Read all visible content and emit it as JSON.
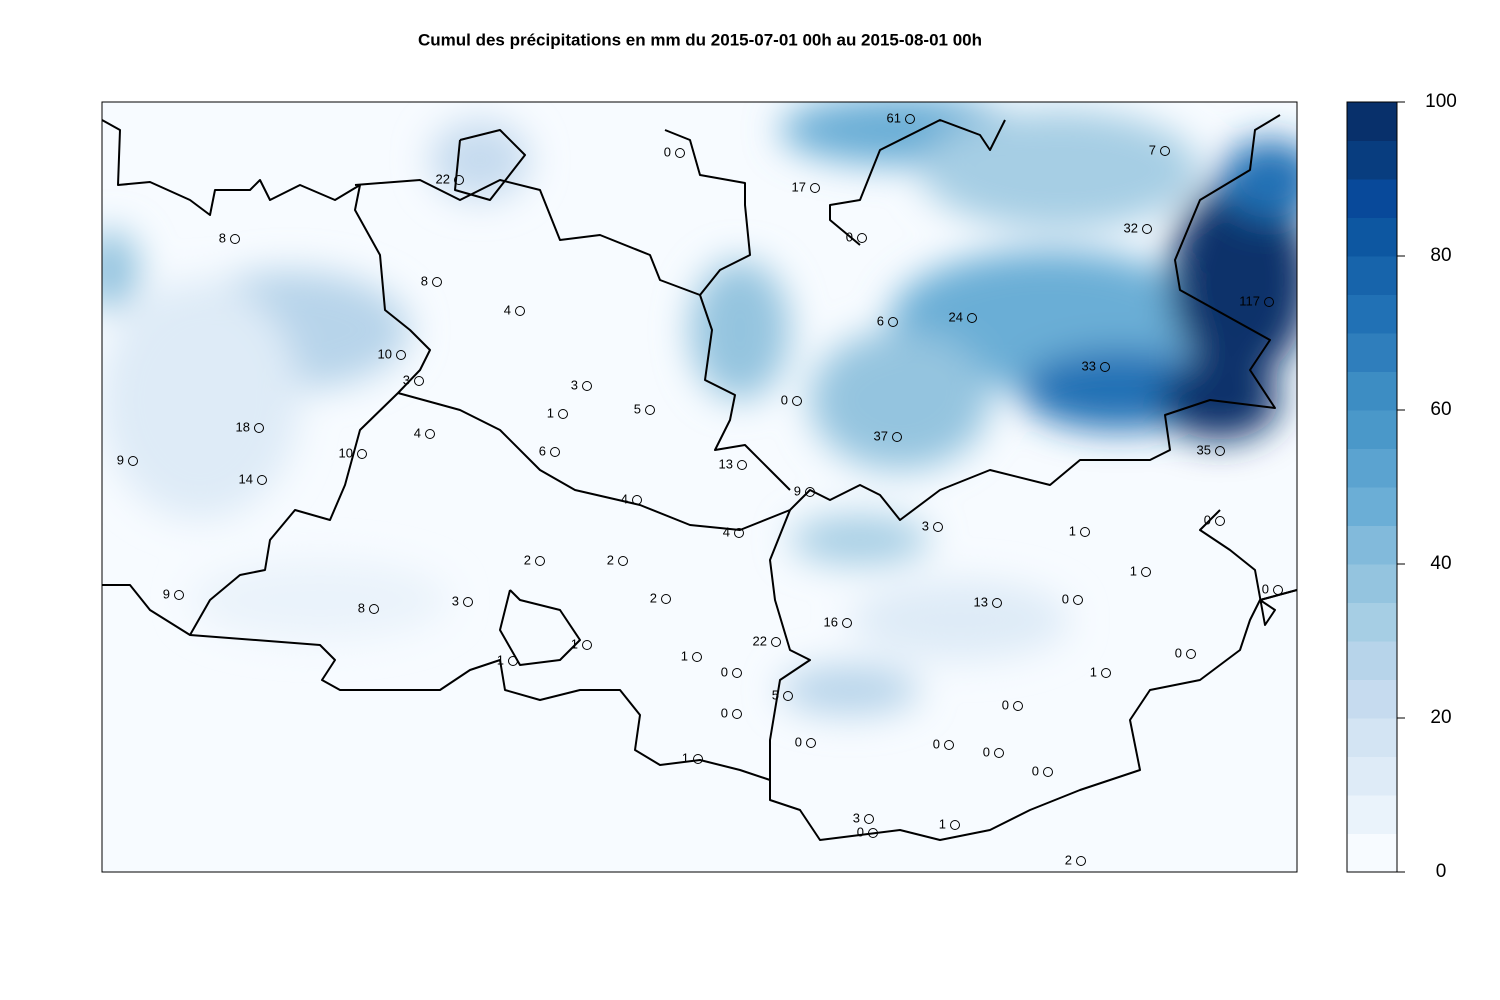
{
  "title": "Cumul des précipitations en mm du 2015-07-01 00h au 2015-08-01 00h",
  "colorbar": {
    "lim": [
      0,
      100
    ],
    "ticks": [
      0,
      20,
      40,
      60,
      80,
      100
    ],
    "colors": [
      "#f7fbff",
      "#eaf3fb",
      "#deebf7",
      "#d3e4f3",
      "#c6dbef",
      "#b7d4ea",
      "#a6cee4",
      "#94c4df",
      "#82badb",
      "#6baed6",
      "#5ba3d0",
      "#4a98c9",
      "#3d8dc3",
      "#2f7ebc",
      "#2171b5",
      "#1764ab",
      "#0d57a1",
      "#08499a",
      "#083d7f",
      "#08306b"
    ]
  },
  "stations": [
    {
      "value": 61
    },
    {
      "value": 0
    },
    {
      "value": 7
    },
    {
      "value": 22
    },
    {
      "value": 17
    },
    {
      "value": 0
    },
    {
      "value": 32
    },
    {
      "value": 8
    },
    {
      "value": 8
    },
    {
      "value": 4
    },
    {
      "value": 117
    },
    {
      "value": 6
    },
    {
      "value": 24
    },
    {
      "value": 10
    },
    {
      "value": 3
    },
    {
      "value": 33
    },
    {
      "value": 3
    },
    {
      "value": 1
    },
    {
      "value": 5
    },
    {
      "value": 0
    },
    {
      "value": 18
    },
    {
      "value": 4
    },
    {
      "value": 37
    },
    {
      "value": 9
    },
    {
      "value": 10
    },
    {
      "value": 6
    },
    {
      "value": 13
    },
    {
      "value": 35
    },
    {
      "value": 14
    },
    {
      "value": 9
    },
    {
      "value": 4
    },
    {
      "value": 3
    },
    {
      "value": 1
    },
    {
      "value": 4
    },
    {
      "value": 0
    },
    {
      "value": 2
    },
    {
      "value": 2
    },
    {
      "value": 1
    },
    {
      "value": 9
    },
    {
      "value": 8
    },
    {
      "value": 3
    },
    {
      "value": 2
    },
    {
      "value": 13
    },
    {
      "value": 0
    },
    {
      "value": 0
    },
    {
      "value": 16
    },
    {
      "value": 22
    },
    {
      "value": 1
    },
    {
      "value": 1
    },
    {
      "value": 1
    },
    {
      "value": 0
    },
    {
      "value": 0
    },
    {
      "value": 1
    },
    {
      "value": 5
    },
    {
      "value": 0
    },
    {
      "value": 0
    },
    {
      "value": 0
    },
    {
      "value": 0
    },
    {
      "value": 0
    },
    {
      "value": 1
    },
    {
      "value": 0
    },
    {
      "value": 3
    },
    {
      "value": 0
    },
    {
      "value": 1
    },
    {
      "value": 2
    }
  ]
}
